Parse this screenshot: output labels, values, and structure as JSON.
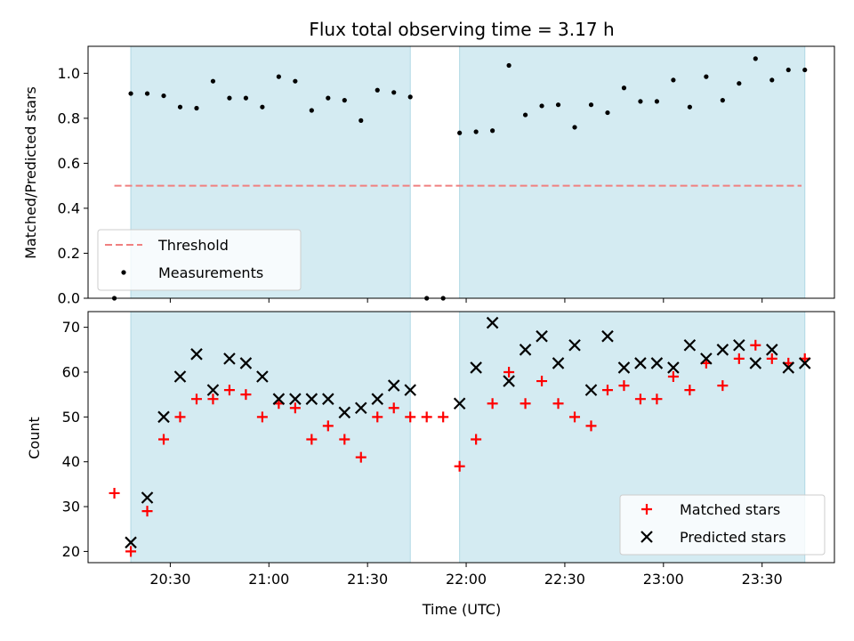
{
  "chart_data": {
    "title": "Flux total observing time = 3.17 h",
    "xlabel": "Time (UTC)",
    "xlim": [
      "20:05",
      "23:52"
    ],
    "x_ticks": [
      "20:30",
      "21:00",
      "21:30",
      "22:00",
      "22:30",
      "23:00",
      "23:30"
    ],
    "shaded_intervals": [
      {
        "start": "20:18",
        "end": "21:43",
        "color": "#d4ebf2"
      },
      {
        "start": "21:58",
        "end": "23:43",
        "color": "#d4ebf2"
      }
    ],
    "panels": [
      {
        "type": "scatter",
        "ylabel": "Matched/Predicted stars",
        "ylim": [
          0,
          1.12
        ],
        "y_ticks": [
          "0.0",
          "0.2",
          "0.4",
          "0.6",
          "0.8",
          "1.0"
        ],
        "legend": "lower-left",
        "threshold": {
          "name": "Threshold",
          "value": 0.5,
          "x_start": "20:13",
          "x_end": "23:42",
          "color": "#f08080"
        },
        "series": [
          {
            "name": "Measurements",
            "marker": "dot",
            "color": "#000000",
            "x": [
              "20:13",
              "20:18",
              "20:23",
              "20:28",
              "20:33",
              "20:38",
              "20:43",
              "20:48",
              "20:53",
              "20:58",
              "21:03",
              "21:08",
              "21:13",
              "21:18",
              "21:23",
              "21:28",
              "21:33",
              "21:38",
              "21:43",
              "21:48",
              "21:53",
              "21:58",
              "22:03",
              "22:08",
              "22:13",
              "22:18",
              "22:23",
              "22:28",
              "22:33",
              "22:38",
              "22:43",
              "22:48",
              "22:53",
              "22:58",
              "23:03",
              "23:08",
              "23:13",
              "23:18",
              "23:23",
              "23:28",
              "23:33",
              "23:38",
              "23:43"
            ],
            "y": [
              0.0,
              0.91,
              0.91,
              0.9,
              0.85,
              0.845,
              0.965,
              0.89,
              0.89,
              0.85,
              0.985,
              0.965,
              0.835,
              0.89,
              0.88,
              0.79,
              0.925,
              0.915,
              0.895,
              0.0,
              0.0,
              0.735,
              0.74,
              0.745,
              1.035,
              0.815,
              0.855,
              0.86,
              0.76,
              0.86,
              0.825,
              0.935,
              0.875,
              0.875,
              0.97,
              0.85,
              0.985,
              0.88,
              0.955,
              1.065,
              0.97,
              1.015,
              1.015
            ]
          }
        ]
      },
      {
        "type": "scatter",
        "ylabel": "Count",
        "ylim": [
          17.5,
          73.5
        ],
        "y_ticks": [
          "20",
          "30",
          "40",
          "50",
          "60",
          "70"
        ],
        "legend": "lower-right",
        "series": [
          {
            "name": "Matched stars",
            "marker": "plus",
            "color": "#ff0000",
            "x": [
              "20:13",
              "20:18",
              "20:23",
              "20:28",
              "20:33",
              "20:38",
              "20:43",
              "20:48",
              "20:53",
              "20:58",
              "21:03",
              "21:08",
              "21:13",
              "21:18",
              "21:23",
              "21:28",
              "21:33",
              "21:38",
              "21:43",
              "21:48",
              "21:53",
              "21:58",
              "22:03",
              "22:08",
              "22:13",
              "22:18",
              "22:23",
              "22:28",
              "22:33",
              "22:38",
              "22:43",
              "22:48",
              "22:53",
              "22:58",
              "23:03",
              "23:08",
              "23:13",
              "23:18",
              "23:23",
              "23:28",
              "23:33",
              "23:38",
              "23:43"
            ],
            "y": [
              33,
              20,
              29,
              45,
              50,
              54,
              54,
              56,
              55,
              50,
              53,
              52,
              45,
              48,
              45,
              41,
              50,
              52,
              50,
              50,
              50,
              39,
              45,
              53,
              60,
              53,
              58,
              53,
              50,
              48,
              56,
              57,
              54,
              54,
              59,
              56,
              62,
              57,
              63,
              66,
              63,
              62,
              63
            ]
          },
          {
            "name": "Predicted stars",
            "marker": "x",
            "color": "#000000",
            "x": [
              "20:18",
              "20:23",
              "20:28",
              "20:33",
              "20:38",
              "20:43",
              "20:48",
              "20:53",
              "20:58",
              "21:03",
              "21:08",
              "21:13",
              "21:18",
              "21:23",
              "21:28",
              "21:33",
              "21:38",
              "21:43",
              "21:58",
              "22:03",
              "22:08",
              "22:13",
              "22:18",
              "22:23",
              "22:28",
              "22:33",
              "22:38",
              "22:43",
              "22:48",
              "22:53",
              "22:58",
              "23:03",
              "23:08",
              "23:13",
              "23:18",
              "23:23",
              "23:28",
              "23:33",
              "23:38",
              "23:43"
            ],
            "y": [
              22,
              32,
              50,
              59,
              64,
              56,
              63,
              62,
              59,
              54,
              54,
              54,
              54,
              51,
              52,
              54,
              57,
              56,
              53,
              61,
              71,
              58,
              65,
              68,
              62,
              66,
              56,
              68,
              61,
              62,
              62,
              61,
              66,
              63,
              65,
              66,
              62,
              65,
              61,
              62
            ]
          }
        ]
      }
    ]
  }
}
